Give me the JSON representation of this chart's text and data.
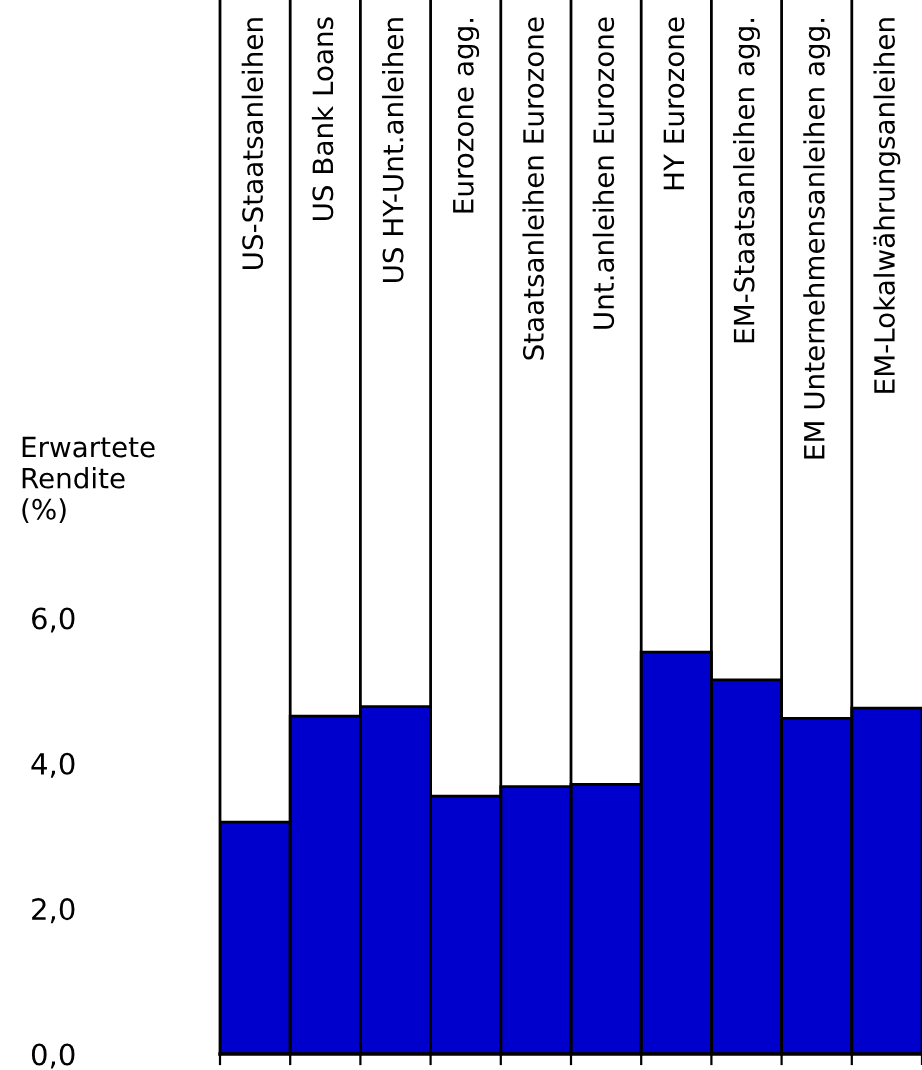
{
  "chart_data": {
    "type": "bar",
    "ylabel": "Erwartete\nRendite\n(%)",
    "categories": [
      "US-Staatsanleihen",
      "US Bank Loans",
      "US HY-Unt.anleihen",
      "Eurozone agg.",
      "Staatsanleihen Eurozone",
      "Unt.anleihen Eurozone",
      "HY Eurozone",
      "EM-Staatsanleihen agg.",
      "EM Unternehmensanleihen agg.",
      "EM-Lokalwährungsanleihen"
    ],
    "values": [
      3.19,
      4.65,
      4.78,
      3.55,
      3.68,
      3.71,
      5.53,
      5.15,
      4.62,
      4.76
    ],
    "color": "#0000cc",
    "ylim": [
      0,
      6
    ],
    "yticks": [
      {
        "value": 0,
        "label": "0,0"
      },
      {
        "value": 2,
        "label": "2,0"
      },
      {
        "value": 4,
        "label": "4,0"
      },
      {
        "value": 6,
        "label": "6,0"
      }
    ],
    "grid": false,
    "legend": false
  }
}
